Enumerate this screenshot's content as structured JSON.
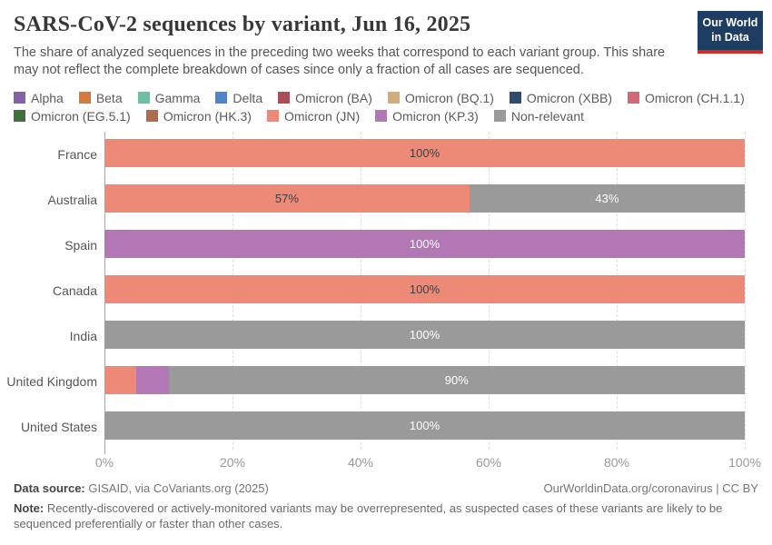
{
  "header": {
    "title": "SARS-CoV-2 sequences by variant, Jun 16, 2025",
    "subtitle": "The share of analyzed sequences in the preceding two weeks that correspond to each variant group. This share may not reflect the complete breakdown of cases since only a fraction of all cases are sequenced.",
    "logo": {
      "line1": "Our World",
      "line2": "in Data",
      "bg_color": "#1d3d63",
      "accent_color": "#d42b20"
    }
  },
  "legend": {
    "rows": [
      [
        {
          "label": "Alpha",
          "color": "#8462A8"
        },
        {
          "label": "Beta",
          "color": "#D5793C"
        },
        {
          "label": "Gamma",
          "color": "#6FC0A1"
        },
        {
          "label": "Delta",
          "color": "#4D87C7"
        },
        {
          "label": "Omicron (BA)",
          "color": "#A94E56"
        },
        {
          "label": "Omicron (BQ.1)",
          "color": "#D2AC7B"
        },
        {
          "label": "Omicron (XBB)",
          "color": "#2E4C6D"
        },
        {
          "label": "Omicron (CH.1.1)",
          "color": "#D06A79"
        }
      ],
      [
        {
          "label": "Omicron (EG.5.1)",
          "color": "#41703F"
        },
        {
          "label": "Omicron (HK.3)",
          "color": "#AF6D4E"
        },
        {
          "label": "Omicron (JN)",
          "color": "#EC8A77"
        },
        {
          "label": "Omicron (KP.3)",
          "color": "#B377B5"
        },
        {
          "label": "Non-relevant",
          "color": "#9A9A9A"
        }
      ]
    ]
  },
  "chart_data": {
    "type": "bar",
    "orientation": "horizontal-stacked",
    "unit": "%",
    "xlim": [
      0,
      100
    ],
    "x_ticks": [
      {
        "label": "0%",
        "value": 0
      },
      {
        "label": "20%",
        "value": 20
      },
      {
        "label": "40%",
        "value": 40
      },
      {
        "label": "60%",
        "value": 60
      },
      {
        "label": "80%",
        "value": 80
      },
      {
        "label": "100%",
        "value": 100
      }
    ],
    "grid": "dashed-vertical",
    "categories": [
      "France",
      "Australia",
      "Spain",
      "Canada",
      "India",
      "United Kingdom",
      "United States"
    ],
    "series": [
      {
        "name": "Omicron (JN)",
        "color": "#EC8A77",
        "values": [
          100,
          57,
          0,
          100,
          0,
          5,
          0
        ]
      },
      {
        "name": "Omicron (KP.3)",
        "color": "#B377B5",
        "values": [
          0,
          0,
          100,
          0,
          0,
          5,
          0
        ]
      },
      {
        "name": "Non-relevant",
        "color": "#9A9A9A",
        "values": [
          0,
          43,
          0,
          0,
          100,
          90,
          100
        ]
      }
    ],
    "rows": [
      {
        "country": "France",
        "segments": [
          {
            "variant": "Omicron (JN)",
            "value": 100,
            "label": "100%",
            "color": "#EC8A77",
            "text_color": "#3f3f3f"
          }
        ]
      },
      {
        "country": "Australia",
        "segments": [
          {
            "variant": "Omicron (JN)",
            "value": 57,
            "label": "57%",
            "color": "#EC8A77",
            "text_color": "#3f3f3f"
          },
          {
            "variant": "Non-relevant",
            "value": 43,
            "label": "43%",
            "color": "#9A9A9A",
            "text_color": "#ffffff"
          }
        ]
      },
      {
        "country": "Spain",
        "segments": [
          {
            "variant": "Omicron (KP.3)",
            "value": 100,
            "label": "100%",
            "color": "#B377B5",
            "text_color": "#ffffff"
          }
        ]
      },
      {
        "country": "Canada",
        "segments": [
          {
            "variant": "Omicron (JN)",
            "value": 100,
            "label": "100%",
            "color": "#EC8A77",
            "text_color": "#3f3f3f"
          }
        ]
      },
      {
        "country": "India",
        "segments": [
          {
            "variant": "Non-relevant",
            "value": 100,
            "label": "100%",
            "color": "#9A9A9A",
            "text_color": "#ffffff"
          }
        ]
      },
      {
        "country": "United Kingdom",
        "segments": [
          {
            "variant": "Omicron (JN)",
            "value": 5,
            "label": "",
            "color": "#EC8A77",
            "text_color": "#3f3f3f"
          },
          {
            "variant": "Omicron (KP.3)",
            "value": 5,
            "label": "",
            "color": "#B377B5",
            "text_color": "#ffffff"
          },
          {
            "variant": "Non-relevant",
            "value": 90,
            "label": "90%",
            "color": "#9A9A9A",
            "text_color": "#ffffff"
          }
        ]
      },
      {
        "country": "United States",
        "segments": [
          {
            "variant": "Non-relevant",
            "value": 100,
            "label": "100%",
            "color": "#9A9A9A",
            "text_color": "#ffffff"
          }
        ]
      }
    ]
  },
  "footer": {
    "source_label": "Data source:",
    "source": "GISAID, via CoVariants.org (2025)",
    "link": "OurWorldinData.org/coronavirus | CC BY",
    "note_label": "Note:",
    "note": "Recently-discovered or actively-monitored variants may be overrepresented, as suspected cases of these variants are likely to be sequenced preferentially or faster than other cases."
  }
}
